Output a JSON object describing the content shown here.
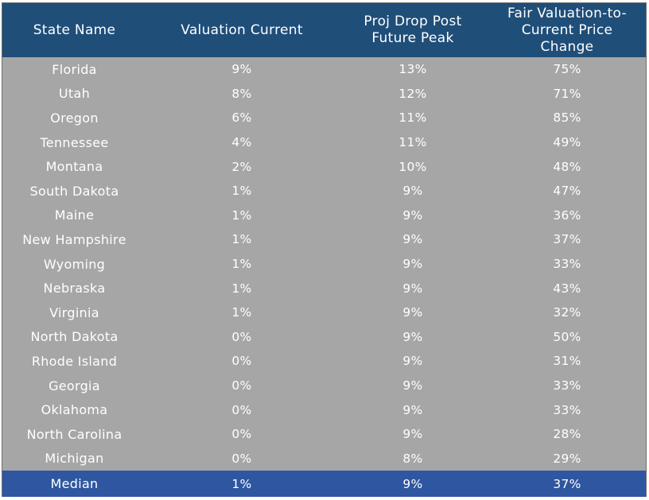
{
  "chart_data": {
    "type": "table",
    "columns": [
      "State Name",
      "Valuation Current",
      "Proj Drop Post Future Peak",
      "Fair Valuation-to-Current Price Change"
    ],
    "rows": [
      [
        "Florida",
        "9%",
        "13%",
        "75%"
      ],
      [
        "Utah",
        "8%",
        "12%",
        "71%"
      ],
      [
        "Oregon",
        "6%",
        "11%",
        "85%"
      ],
      [
        "Tennessee",
        "4%",
        "11%",
        "49%"
      ],
      [
        "Montana",
        "2%",
        "10%",
        "48%"
      ],
      [
        "South Dakota",
        "1%",
        "9%",
        "47%"
      ],
      [
        "Maine",
        "1%",
        "9%",
        "36%"
      ],
      [
        "New Hampshire",
        "1%",
        "9%",
        "37%"
      ],
      [
        "Wyoming",
        "1%",
        "9%",
        "33%"
      ],
      [
        "Nebraska",
        "1%",
        "9%",
        "43%"
      ],
      [
        "Virginia",
        "1%",
        "9%",
        "32%"
      ],
      [
        "North Dakota",
        "0%",
        "9%",
        "50%"
      ],
      [
        "Rhode Island",
        "0%",
        "9%",
        "31%"
      ],
      [
        "Georgia",
        "0%",
        "9%",
        "33%"
      ],
      [
        "Oklahoma",
        "0%",
        "9%",
        "33%"
      ],
      [
        "North Carolina",
        "0%",
        "9%",
        "28%"
      ],
      [
        "Michigan",
        "0%",
        "8%",
        "29%"
      ]
    ],
    "summary_row": [
      "Median",
      "1%",
      "9%",
      "37%"
    ],
    "colors": {
      "header_bg": "#1f4e79",
      "body_bg": "#a6a6a6",
      "summary_bg": "#2f56a0",
      "text": "#ffffff"
    }
  }
}
